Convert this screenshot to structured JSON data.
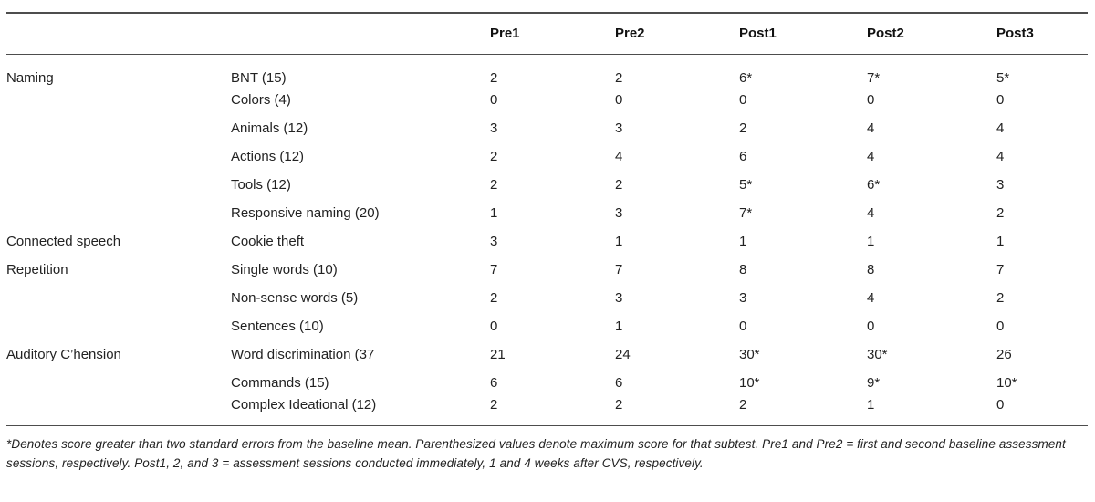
{
  "table": {
    "col_headers": [
      "Pre1",
      "Pre2",
      "Post1",
      "Post2",
      "Post3"
    ],
    "rows": [
      {
        "category": "Naming",
        "subtest": "BNT (15)",
        "values": [
          "2",
          "2",
          "6*",
          "7*",
          "5*"
        ]
      },
      {
        "category": "",
        "subtest": "Colors (4)",
        "values": [
          "0",
          "0",
          "0",
          "0",
          "0"
        ]
      },
      {
        "category": "",
        "subtest": "Animals (12)",
        "values": [
          "3",
          "3",
          "2",
          "4",
          "4"
        ]
      },
      {
        "category": "",
        "subtest": "Actions (12)",
        "values": [
          "2",
          "4",
          "6",
          "4",
          "4"
        ]
      },
      {
        "category": "",
        "subtest": "Tools (12)",
        "values": [
          "2",
          "2",
          "5*",
          "6*",
          "3"
        ]
      },
      {
        "category": "",
        "subtest": "Responsive naming (20)",
        "values": [
          "1",
          "3",
          "7*",
          "4",
          "2"
        ]
      },
      {
        "category": "Connected speech",
        "subtest": "Cookie theft",
        "values": [
          "3",
          "1",
          "1",
          "1",
          "1"
        ]
      },
      {
        "category": "Repetition",
        "subtest": "Single words (10)",
        "values": [
          "7",
          "7",
          "8",
          "8",
          "7"
        ]
      },
      {
        "category": "",
        "subtest": "Non-sense words (5)",
        "values": [
          "2",
          "3",
          "3",
          "4",
          "2"
        ]
      },
      {
        "category": "",
        "subtest": "Sentences (10)",
        "values": [
          "0",
          "1",
          "0",
          "0",
          "0"
        ]
      },
      {
        "category": "Auditory C’hension",
        "subtest": "Word discrimination (37",
        "values": [
          "21",
          "24",
          "30*",
          "30*",
          "26"
        ]
      },
      {
        "category": "",
        "subtest": "Commands (15)",
        "values": [
          "6",
          "6",
          "10*",
          "9*",
          "10*"
        ]
      },
      {
        "category": "",
        "subtest": "Complex Ideational (12)",
        "values": [
          "2",
          "2",
          "2",
          "1",
          "0"
        ]
      }
    ]
  },
  "footnote": "*Denotes score greater than two standard errors from the baseline mean. Parenthesized values denote maximum score for that subtest. Pre1 and Pre2 = first and second baseline assessment sessions, respectively. Post1, 2, and 3 = assessment sessions conducted immediately, 1 and 4 weeks after CVS, respectively."
}
